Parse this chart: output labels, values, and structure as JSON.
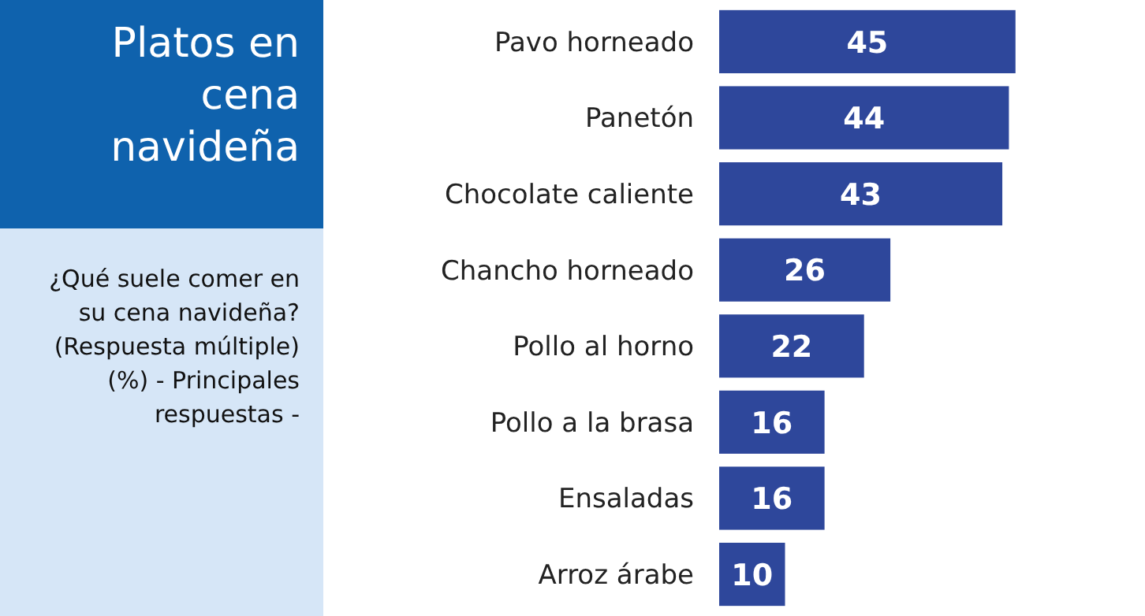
{
  "chart_data": {
    "type": "bar",
    "orientation": "horizontal",
    "title": "Platos en cena navideña",
    "subtitle": "¿Qué suele comer en su cena navideña? (Respuesta múltiple) (%) - Principales respuestas -",
    "categories": [
      "Pavo horneado",
      "Panetón",
      "Chocolate caliente",
      "Chancho horneado",
      "Pollo al horno",
      "Pollo a la brasa",
      "Ensaladas",
      "Arroz árabe"
    ],
    "values": [
      45,
      44,
      43,
      26,
      22,
      16,
      16,
      10
    ],
    "color": "#2e479b",
    "data_labels": true
  }
}
